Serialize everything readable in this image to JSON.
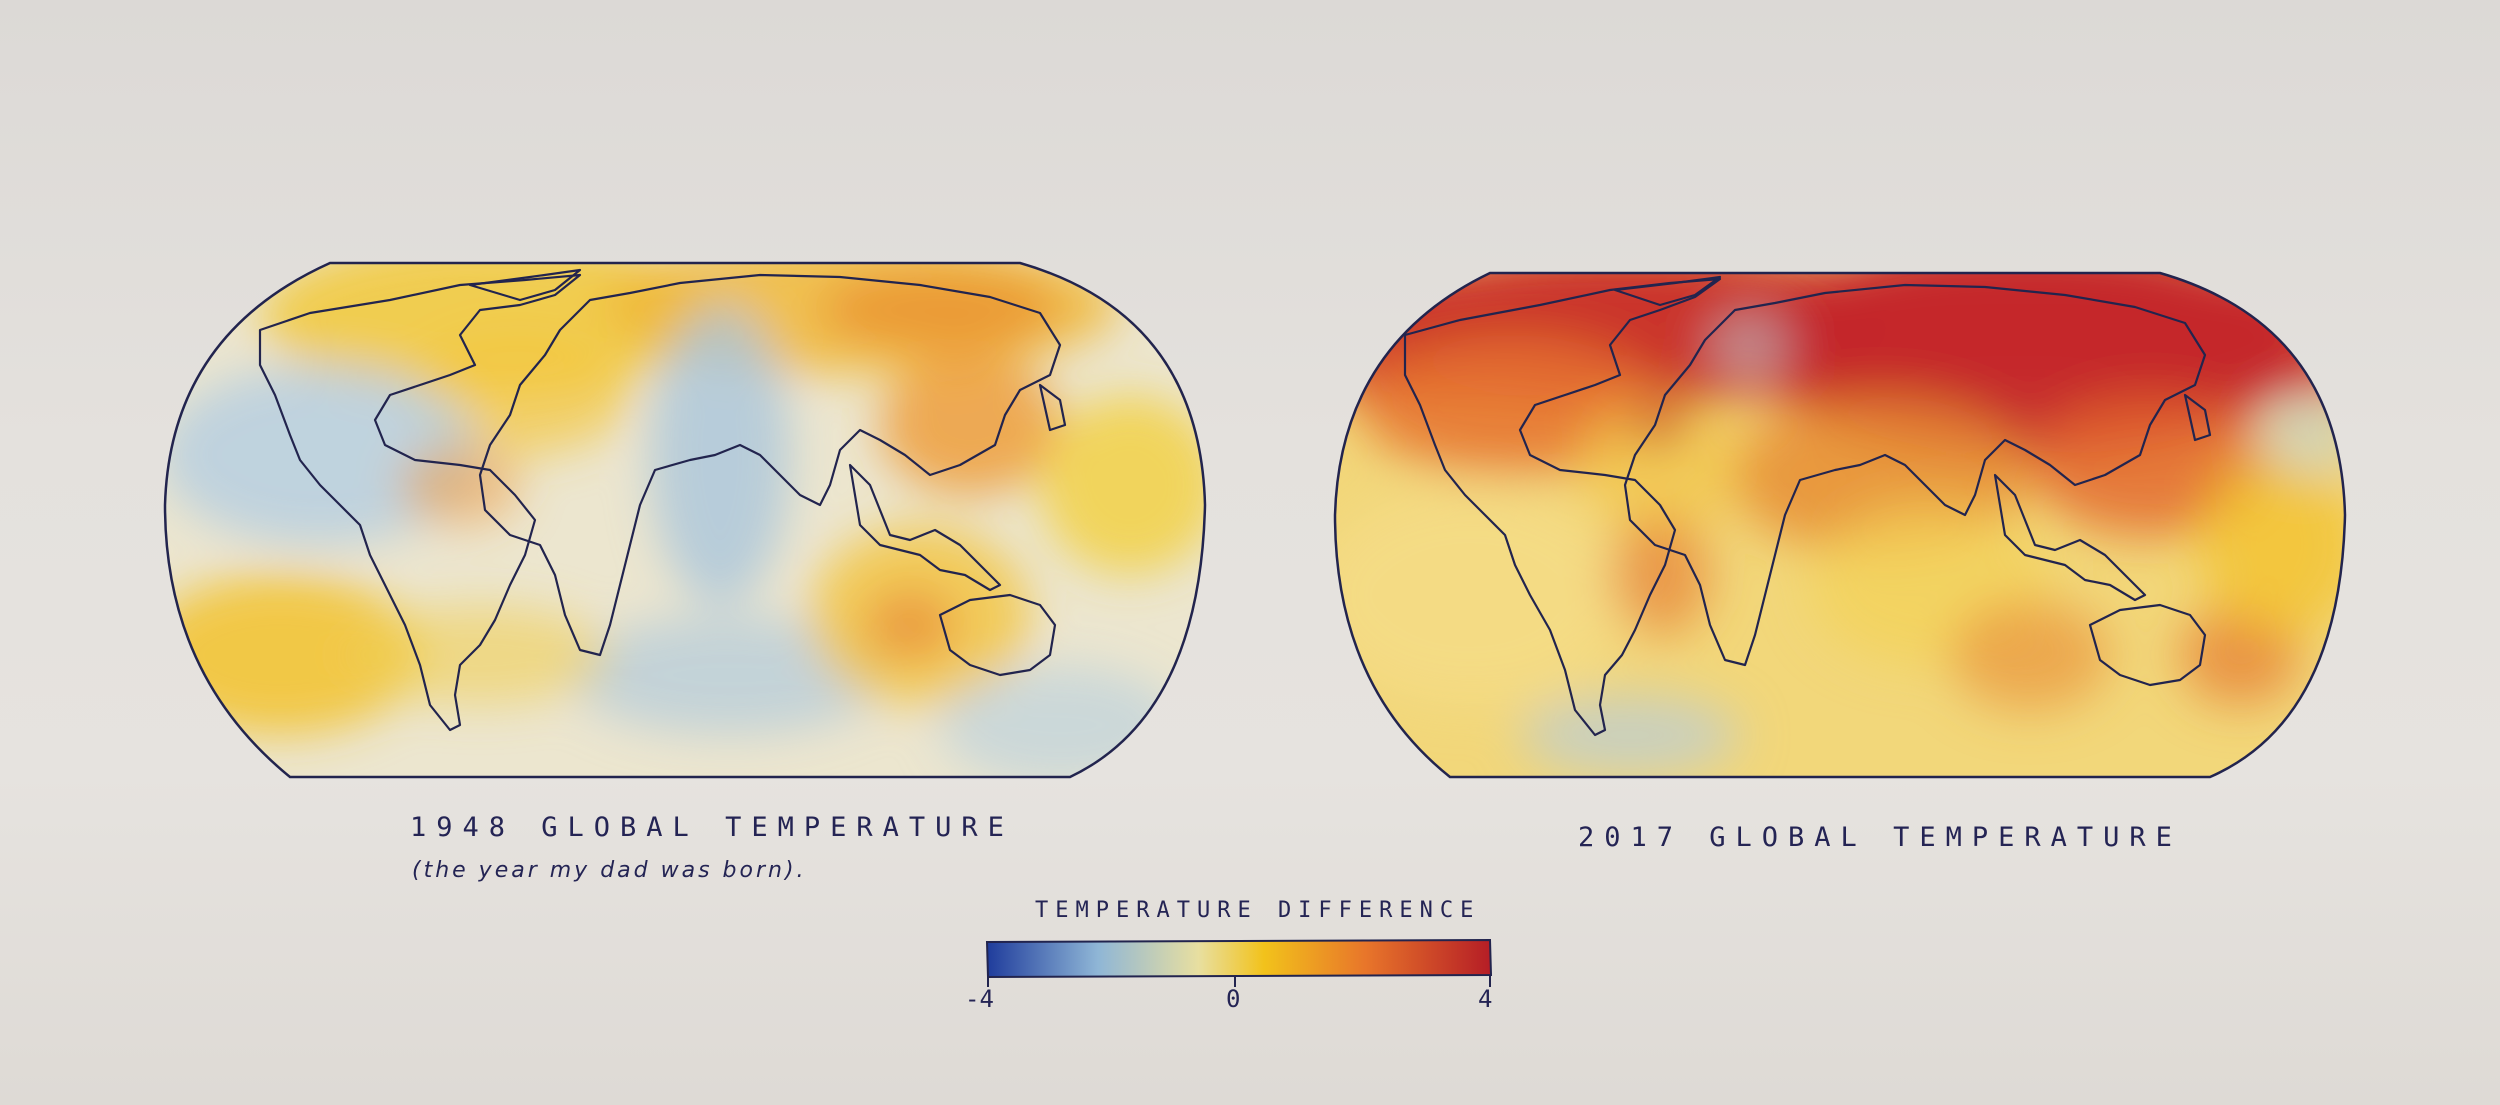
{
  "maps": [
    {
      "id": "1948",
      "title": "1948 GLOBAL TEMPERATURE",
      "subtitle": "(the year my dad was born)."
    },
    {
      "id": "2017",
      "title": "2017 GLOBAL TEMPERATURE"
    }
  ],
  "legend": {
    "title": "TEMPERATURE DIFFERENCE",
    "min_label": "-4",
    "mid_label": "0",
    "max_label": "4",
    "color_stops": [
      "#1f3c9c",
      "#8fb6d6",
      "#e8dfa0",
      "#f2c21b",
      "#e8762a",
      "#b51d26"
    ]
  },
  "colors": {
    "ink": "#242454",
    "paper": "#e4e1dd",
    "cool": "#a9c4d8",
    "neutral": "#ebe4c6",
    "warm": "#f0c43a",
    "hot": "#e5702c",
    "very_hot": "#c8252a"
  }
}
